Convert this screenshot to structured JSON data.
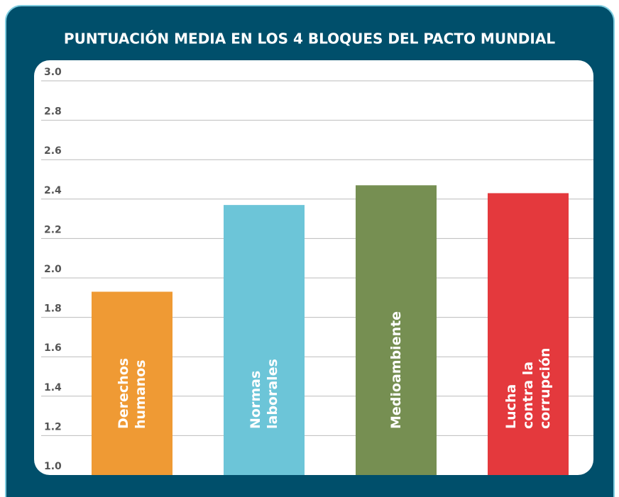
{
  "chart_data": {
    "type": "bar",
    "title": "PUNTUACIÓN MEDIA EN LOS 4 BLOQUES DEL PACTO MUNDIAL",
    "categories": [
      "Derechos humanos",
      "Normas laborales",
      "Medioambiente",
      "Lucha contra la corrupción"
    ],
    "values": [
      1.93,
      2.37,
      2.47,
      2.43
    ],
    "colors": [
      "#ef9a34",
      "#6cc5d8",
      "#768f52",
      "#e4393d"
    ],
    "ylim": [
      1.0,
      3.0
    ],
    "yticks": [
      {
        "value": 1.0,
        "label": "1.0"
      },
      1.2,
      1.4,
      1.6,
      1.8,
      {
        "value": 2.0,
        "label": "2.0"
      },
      2.2,
      2.4,
      2.6,
      2.8,
      {
        "value": 3.0,
        "label": "3.0"
      }
    ],
    "grid": true
  }
}
